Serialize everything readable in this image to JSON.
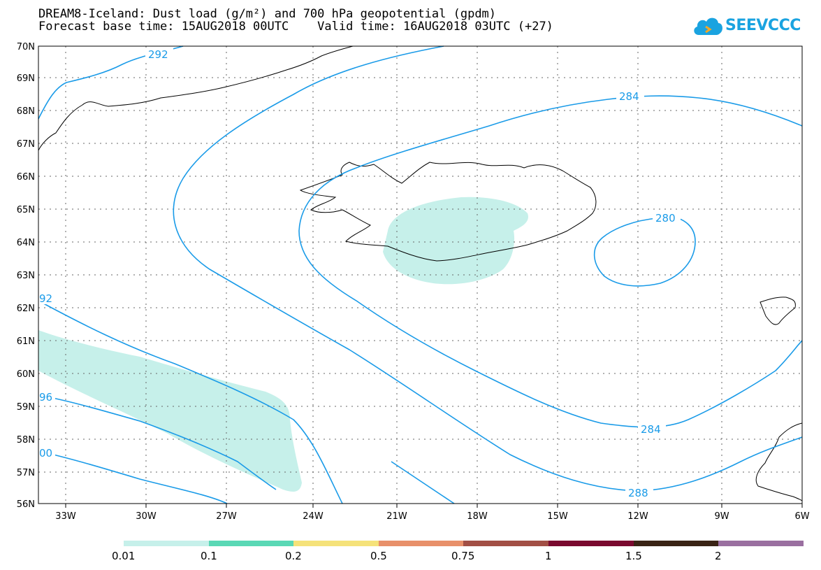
{
  "title": {
    "line1": "DREAM8-Iceland: Dust load (g/m²) and 700 hPa geopotential (gpdm)",
    "line2": "Forecast base time: 15AUG2018 00UTC    Valid time: 16AUG2018 03UTC (+27)"
  },
  "logo": {
    "text": "SEEVCCC",
    "icon": "cloud-icon",
    "color": "#1aa3e0"
  },
  "axes": {
    "lat_labels": [
      "70N",
      "69N",
      "68N",
      "67N",
      "66N",
      "65N",
      "64N",
      "63N",
      "62N",
      "61N",
      "60N",
      "59N",
      "58N",
      "57N",
      "56N"
    ],
    "lon_labels": [
      "33W",
      "30W",
      "27W",
      "24W",
      "21W",
      "18W",
      "15W",
      "12W",
      "9W",
      "6W"
    ]
  },
  "contours": {
    "labels": [
      "292",
      "284",
      "280",
      "284",
      "288",
      "92",
      "96",
      "00"
    ],
    "color": "#1a9be8"
  },
  "dust": {
    "fill_color": "#c6f0ea"
  },
  "colorbar": {
    "labels": [
      "0.01",
      "0.1",
      "0.2",
      "0.5",
      "0.75",
      "1",
      "1.5",
      "2"
    ],
    "colors": [
      "#c6f0ea",
      "#5ad8b5",
      "#f5e27a",
      "#e8906a",
      "#a24f45",
      "#7a0a2f",
      "#3a2415",
      "#9a6fa0"
    ]
  }
}
